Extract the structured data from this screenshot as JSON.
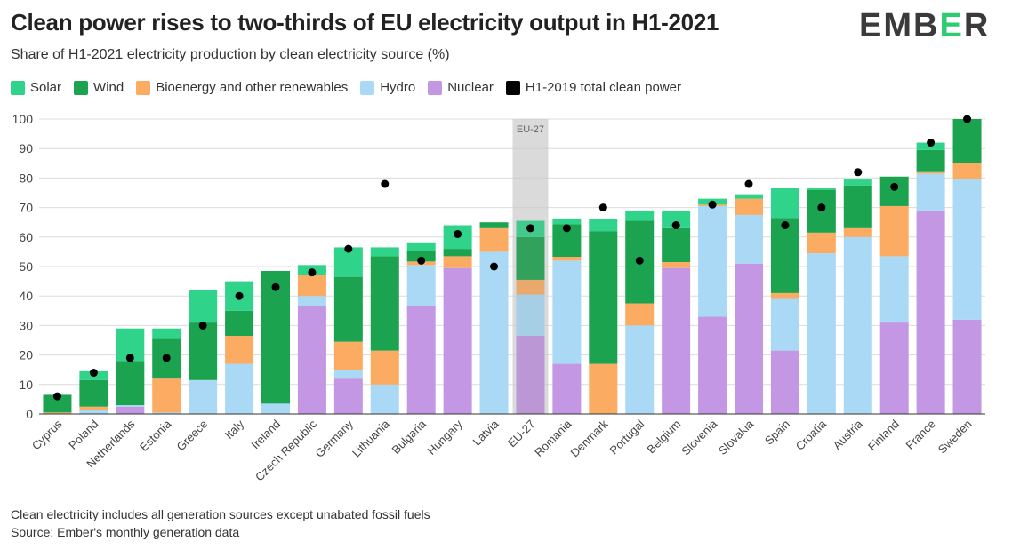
{
  "header": {
    "title": "Clean power rises to two-thirds of EU electricity output in H1-2021",
    "subtitle": "Share of H1-2021 electricity production by clean electricity source (%)",
    "logo": {
      "left": "EMB",
      "mid": "E",
      "right": "R"
    }
  },
  "footer": {
    "note": "Clean electricity includes all generation sources except unabated fossil fuels",
    "source": "Source: Ember's monthly generation data"
  },
  "chart_data": {
    "type": "bar",
    "stacked": true,
    "highlight": {
      "category": "EU-27",
      "label": "EU-27"
    },
    "categories": [
      "Cyprus",
      "Poland",
      "Netherlands",
      "Estonia",
      "Greece",
      "Italy",
      "Ireland",
      "Czech Republic",
      "Germany",
      "Lithuania",
      "Bulgaria",
      "Hungary",
      "Latvia",
      "EU-27",
      "Romania",
      "Denmark",
      "Portugal",
      "Belgium",
      "Slovenia",
      "Slovakia",
      "Spain",
      "Croatia",
      "Austria",
      "Finland",
      "France",
      "Sweden"
    ],
    "ylim": [
      0,
      100
    ],
    "yticks": [
      0,
      10,
      20,
      30,
      40,
      50,
      60,
      70,
      80,
      90,
      100
    ],
    "grid": true,
    "legend_position": "top-left",
    "series": [
      {
        "name": "Nuclear",
        "color": "#c397e3",
        "values": [
          0,
          0,
          2.5,
          0,
          0,
          0,
          0,
          36.5,
          12,
          0,
          36.5,
          49.5,
          0,
          26.5,
          17,
          0,
          0,
          49.5,
          33,
          51,
          21.5,
          0,
          0,
          31,
          69,
          32
        ]
      },
      {
        "name": "Hydro",
        "color": "#a9d9f5",
        "values": [
          0,
          1.5,
          0.5,
          0.5,
          11.5,
          17,
          3.5,
          3.5,
          3,
          10,
          14,
          0,
          55,
          14,
          35,
          0,
          30,
          0,
          37.5,
          16.5,
          17.5,
          54.5,
          60,
          22.5,
          12.5,
          47.5
        ]
      },
      {
        "name": "Bioenergy and other renewables",
        "color": "#fbab62",
        "values": [
          0.5,
          1,
          0,
          11.5,
          0,
          9.5,
          0,
          7,
          9.5,
          11.5,
          1.2,
          4,
          8,
          5,
          1.3,
          17,
          7.5,
          2,
          0.5,
          5.5,
          2,
          7,
          3,
          17,
          0.5,
          5.5
        ]
      },
      {
        "name": "Wind",
        "color": "#1ba34f",
        "values": [
          6,
          9,
          15,
          13.5,
          19.5,
          8.5,
          45,
          0,
          22,
          32,
          3.5,
          2.5,
          2,
          14.5,
          11,
          45,
          28,
          11.5,
          0,
          0,
          25.5,
          14.5,
          14.5,
          10,
          7.5,
          15
        ]
      },
      {
        "name": "Solar",
        "color": "#2fd38a",
        "values": [
          0,
          3,
          11,
          3.5,
          11,
          10,
          0,
          3.5,
          10,
          3,
          3,
          8,
          0,
          5.5,
          2,
          4,
          3.5,
          6,
          2,
          1.5,
          10,
          0.5,
          2,
          0,
          2.5,
          0
        ]
      }
    ],
    "markers": {
      "name": "H1-2019 total clean power",
      "color": "#000000",
      "values": [
        6,
        14,
        19,
        19,
        30,
        40,
        43,
        48,
        56,
        78,
        52,
        61,
        50,
        63,
        63,
        70,
        52,
        64,
        71,
        78,
        64,
        70,
        82,
        77,
        92,
        100
      ]
    }
  }
}
